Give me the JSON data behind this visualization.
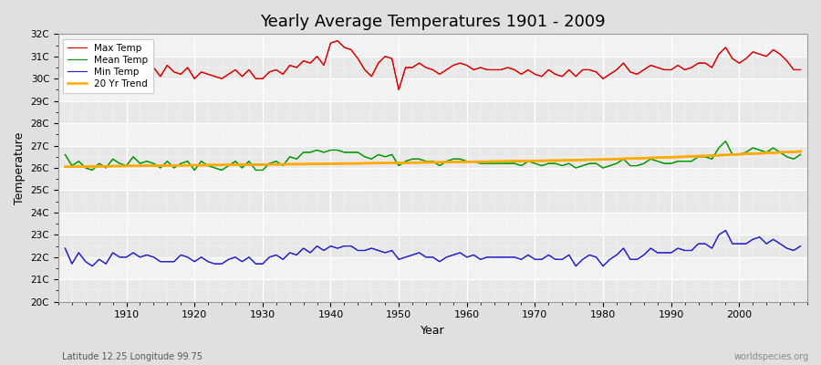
{
  "title": "Yearly Average Temperatures 1901 - 2009",
  "xlabel": "Year",
  "ylabel": "Temperature",
  "x_label_bottom": "Latitude 12.25 Longitude 99.75",
  "x_label_right": "worldspecies.org",
  "years": [
    1901,
    1902,
    1903,
    1904,
    1905,
    1906,
    1907,
    1908,
    1909,
    1910,
    1911,
    1912,
    1913,
    1914,
    1915,
    1916,
    1917,
    1918,
    1919,
    1920,
    1921,
    1922,
    1923,
    1924,
    1925,
    1926,
    1927,
    1928,
    1929,
    1930,
    1931,
    1932,
    1933,
    1934,
    1935,
    1936,
    1937,
    1938,
    1939,
    1940,
    1941,
    1942,
    1943,
    1944,
    1945,
    1946,
    1947,
    1948,
    1949,
    1950,
    1951,
    1952,
    1953,
    1954,
    1955,
    1956,
    1957,
    1958,
    1959,
    1960,
    1961,
    1962,
    1963,
    1964,
    1965,
    1966,
    1967,
    1968,
    1969,
    1970,
    1971,
    1972,
    1973,
    1974,
    1975,
    1976,
    1977,
    1978,
    1979,
    1980,
    1981,
    1982,
    1983,
    1984,
    1985,
    1986,
    1987,
    1988,
    1989,
    1990,
    1991,
    1992,
    1993,
    1994,
    1995,
    1996,
    1997,
    1998,
    1999,
    2000,
    2001,
    2002,
    2003,
    2004,
    2005,
    2006,
    2007,
    2008,
    2009
  ],
  "max_temp": [
    30.8,
    30.2,
    30.4,
    30.1,
    30.3,
    30.5,
    30.2,
    30.6,
    30.0,
    30.0,
    30.4,
    30.2,
    30.4,
    30.5,
    30.1,
    30.6,
    30.3,
    30.2,
    30.5,
    30.0,
    30.3,
    30.2,
    30.1,
    30.0,
    30.2,
    30.4,
    30.1,
    30.4,
    30.0,
    30.0,
    30.3,
    30.4,
    30.2,
    30.6,
    30.5,
    30.8,
    30.7,
    31.0,
    30.6,
    31.6,
    31.7,
    31.4,
    31.3,
    30.9,
    30.4,
    30.1,
    30.7,
    31.0,
    30.9,
    29.5,
    30.5,
    30.5,
    30.7,
    30.5,
    30.4,
    30.2,
    30.4,
    30.6,
    30.7,
    30.6,
    30.4,
    30.5,
    30.4,
    30.4,
    30.4,
    30.5,
    30.4,
    30.2,
    30.4,
    30.2,
    30.1,
    30.4,
    30.2,
    30.1,
    30.4,
    30.1,
    30.4,
    30.4,
    30.3,
    30.0,
    30.2,
    30.4,
    30.7,
    30.3,
    30.2,
    30.4,
    30.6,
    30.5,
    30.4,
    30.4,
    30.6,
    30.4,
    30.5,
    30.7,
    30.7,
    30.5,
    31.1,
    31.4,
    30.9,
    30.7,
    30.9,
    31.2,
    31.1,
    31.0,
    31.3,
    31.1,
    30.8,
    30.4,
    30.4
  ],
  "mean_temp": [
    26.6,
    26.1,
    26.3,
    26.0,
    25.9,
    26.2,
    26.0,
    26.4,
    26.2,
    26.1,
    26.5,
    26.2,
    26.3,
    26.2,
    26.0,
    26.3,
    26.0,
    26.2,
    26.3,
    25.9,
    26.3,
    26.1,
    26.0,
    25.9,
    26.1,
    26.3,
    26.0,
    26.3,
    25.9,
    25.9,
    26.2,
    26.3,
    26.1,
    26.5,
    26.4,
    26.7,
    26.7,
    26.8,
    26.7,
    26.8,
    26.8,
    26.7,
    26.7,
    26.7,
    26.5,
    26.4,
    26.6,
    26.5,
    26.6,
    26.1,
    26.3,
    26.4,
    26.4,
    26.3,
    26.3,
    26.1,
    26.3,
    26.4,
    26.4,
    26.3,
    26.3,
    26.2,
    26.2,
    26.2,
    26.2,
    26.2,
    26.2,
    26.1,
    26.3,
    26.2,
    26.1,
    26.2,
    26.2,
    26.1,
    26.2,
    26.0,
    26.1,
    26.2,
    26.2,
    26.0,
    26.1,
    26.2,
    26.4,
    26.1,
    26.1,
    26.2,
    26.4,
    26.3,
    26.2,
    26.2,
    26.3,
    26.3,
    26.3,
    26.5,
    26.5,
    26.4,
    26.9,
    27.2,
    26.6,
    26.6,
    26.7,
    26.9,
    26.8,
    26.7,
    26.9,
    26.7,
    26.5,
    26.4,
    26.6
  ],
  "min_temp": [
    22.4,
    21.7,
    22.2,
    21.8,
    21.6,
    21.9,
    21.7,
    22.2,
    22.0,
    22.0,
    22.2,
    22.0,
    22.1,
    22.0,
    21.8,
    21.8,
    21.8,
    22.1,
    22.0,
    21.8,
    22.0,
    21.8,
    21.7,
    21.7,
    21.9,
    22.0,
    21.8,
    22.0,
    21.7,
    21.7,
    22.0,
    22.1,
    21.9,
    22.2,
    22.1,
    22.4,
    22.2,
    22.5,
    22.3,
    22.5,
    22.4,
    22.5,
    22.5,
    22.3,
    22.3,
    22.4,
    22.3,
    22.2,
    22.3,
    21.9,
    22.0,
    22.1,
    22.2,
    22.0,
    22.0,
    21.8,
    22.0,
    22.1,
    22.2,
    22.0,
    22.1,
    21.9,
    22.0,
    22.0,
    22.0,
    22.0,
    22.0,
    21.9,
    22.1,
    21.9,
    21.9,
    22.1,
    21.9,
    21.9,
    22.1,
    21.6,
    21.9,
    22.1,
    22.0,
    21.6,
    21.9,
    22.1,
    22.4,
    21.9,
    21.9,
    22.1,
    22.4,
    22.2,
    22.2,
    22.2,
    22.4,
    22.3,
    22.3,
    22.6,
    22.6,
    22.4,
    23.0,
    23.2,
    22.6,
    22.6,
    22.6,
    22.8,
    22.9,
    22.6,
    22.8,
    22.6,
    22.4,
    22.3,
    22.5
  ],
  "trend_temp": [
    26.05,
    26.05,
    26.06,
    26.06,
    26.07,
    26.07,
    26.07,
    26.08,
    26.08,
    26.09,
    26.09,
    26.09,
    26.1,
    26.1,
    26.1,
    26.11,
    26.11,
    26.11,
    26.12,
    26.12,
    26.12,
    26.13,
    26.13,
    26.13,
    26.14,
    26.14,
    26.14,
    26.15,
    26.15,
    26.15,
    26.16,
    26.16,
    26.16,
    26.17,
    26.17,
    26.17,
    26.18,
    26.18,
    26.18,
    26.19,
    26.19,
    26.2,
    26.2,
    26.2,
    26.21,
    26.21,
    26.22,
    26.22,
    26.22,
    26.23,
    26.23,
    26.24,
    26.24,
    26.25,
    26.25,
    26.25,
    26.26,
    26.26,
    26.27,
    26.27,
    26.28,
    26.28,
    26.28,
    26.29,
    26.29,
    26.3,
    26.3,
    26.31,
    26.31,
    26.32,
    26.32,
    26.33,
    26.33,
    26.34,
    26.35,
    26.35,
    26.36,
    26.37,
    26.37,
    26.38,
    26.39,
    26.4,
    26.41,
    26.42,
    26.43,
    26.44,
    26.45,
    26.46,
    26.47,
    26.48,
    26.49,
    26.5,
    26.52,
    26.53,
    26.54,
    26.55,
    26.57,
    26.58,
    26.6,
    26.61,
    26.63,
    26.64,
    26.65,
    26.67,
    26.68,
    26.7,
    26.71,
    26.72,
    26.74
  ],
  "ylim": [
    20.0,
    32.0
  ],
  "yticks": [
    20,
    21,
    22,
    23,
    24,
    25,
    26,
    27,
    28,
    29,
    30,
    31,
    32
  ],
  "ytick_labels": [
    "20C",
    "21C",
    "22C",
    "23C",
    "24C",
    "25C",
    "26C",
    "27C",
    "28C",
    "29C",
    "30C",
    "31C",
    "32C"
  ],
  "xlim": [
    1900,
    2010
  ],
  "xticks": [
    1910,
    1920,
    1930,
    1940,
    1950,
    1960,
    1970,
    1980,
    1990,
    2000
  ],
  "bg_color": "#e0e0e0",
  "plot_bg": "#ebebeb",
  "max_color": "#dd0000",
  "mean_color": "#009900",
  "min_color": "#2222cc",
  "trend_color": "#ffaa00",
  "legend_labels": [
    "Max Temp",
    "Mean Temp",
    "Min Temp",
    "20 Yr Trend"
  ],
  "title_fontsize": 13
}
